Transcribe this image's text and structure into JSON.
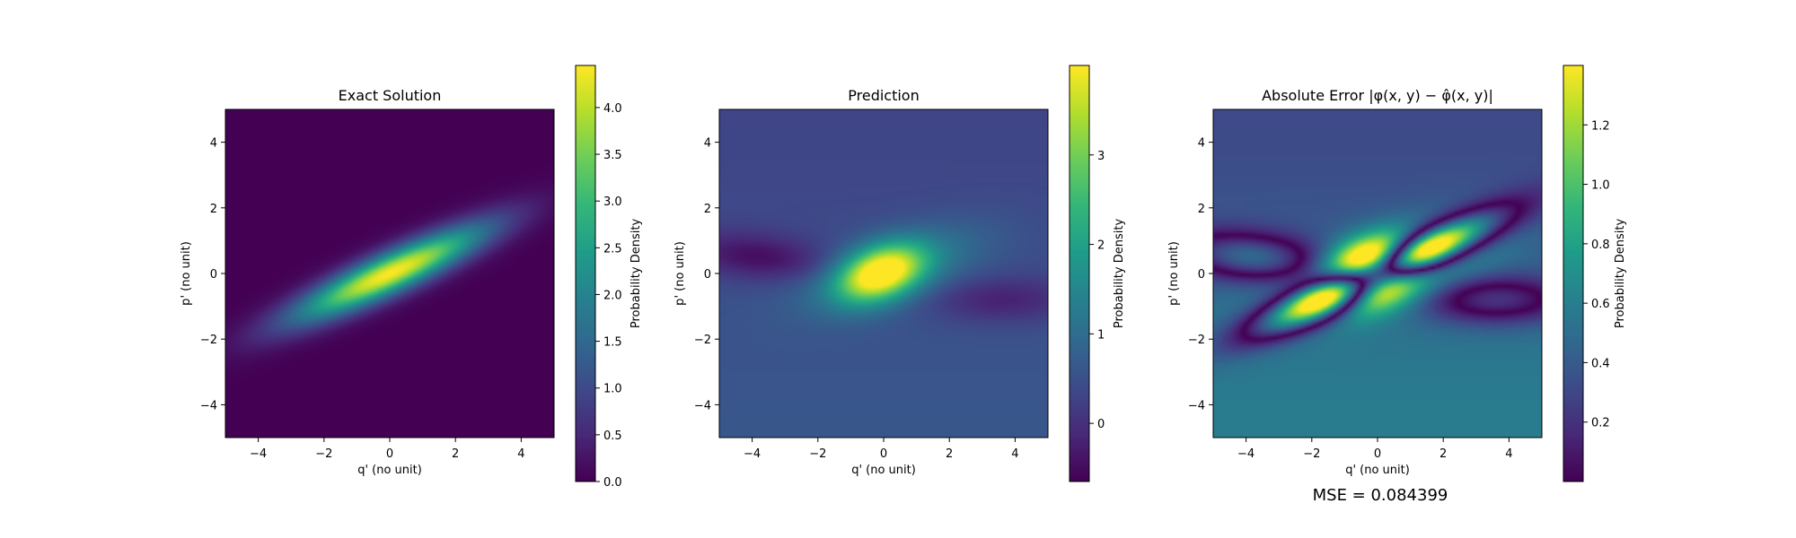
{
  "chart_data": [
    {
      "type": "heatmap",
      "title": "Exact Solution",
      "xlabel": "q' (no unit)",
      "ylabel": "p' (no unit)",
      "xlim": [
        -5,
        5
      ],
      "ylim": [
        -5,
        5
      ],
      "xticks": [
        "−4",
        "−2",
        "0",
        "2",
        "4"
      ],
      "yticks": [
        "−4",
        "−2",
        "0",
        "2",
        "4"
      ],
      "colormap": "viridis",
      "colorbar": {
        "label": "Probability Density",
        "range": [
          0.0,
          4.45
        ],
        "ticks": [
          "0.0",
          "0.5",
          "1.0",
          "1.5",
          "2.0",
          "2.5",
          "3.0",
          "3.5",
          "4.0"
        ]
      },
      "peak_value": 4.45
    },
    {
      "type": "heatmap",
      "title": "Prediction",
      "xlabel": "q' (no unit)",
      "ylabel": "p' (no unit)",
      "xlim": [
        -5,
        5
      ],
      "ylim": [
        -5,
        5
      ],
      "xticks": [
        "−4",
        "−2",
        "0",
        "2",
        "4"
      ],
      "yticks": [
        "−4",
        "−2",
        "0",
        "2",
        "4"
      ],
      "colormap": "viridis",
      "colorbar": {
        "label": "Probability Density",
        "range": [
          -0.65,
          4.0
        ],
        "ticks": [
          "0",
          "1",
          "2",
          "3"
        ]
      },
      "peak_value": 4.0
    },
    {
      "type": "heatmap",
      "title": "Absolute Error |φ(x, y) − φ̂(x, y)|",
      "xlabel": "q' (no unit)",
      "ylabel": "p' (no unit)",
      "xlim": [
        -5,
        5
      ],
      "ylim": [
        -5,
        5
      ],
      "xticks": [
        "−4",
        "−2",
        "0",
        "2",
        "4"
      ],
      "yticks": [
        "−4",
        "−2",
        "0",
        "2",
        "4"
      ],
      "colormap": "viridis",
      "colorbar": {
        "label": "Probability Density",
        "range": [
          0.0,
          1.4
        ],
        "ticks": [
          "0.2",
          "0.4",
          "0.6",
          "0.8",
          "1.0",
          "1.2"
        ]
      },
      "peak_value": 1.4,
      "footer": "MSE = 0.084399"
    }
  ]
}
